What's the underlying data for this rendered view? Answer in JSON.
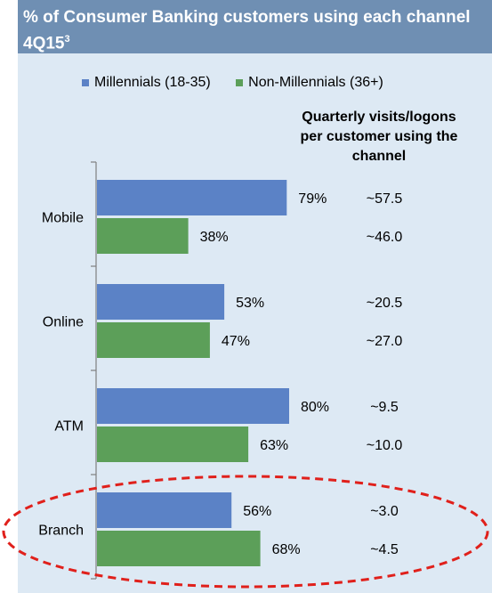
{
  "header": {
    "title": "% of Consumer Banking customers using each channel 4Q15",
    "superscript": "3"
  },
  "colors": {
    "millennials": "#5b82c6",
    "non_millennials": "#5c9f59",
    "highlight": "#e0201b",
    "header": "#6f8fb3",
    "panel": "#dde9f4"
  },
  "note": "Quarterly visits/logons per customer using the channel",
  "chart_data": {
    "type": "bar",
    "orientation": "horizontal",
    "categories": [
      "Mobile",
      "Online",
      "ATM",
      "Branch"
    ],
    "series": [
      {
        "name": "Millennials (18-35)",
        "values": [
          79,
          53,
          80,
          56
        ],
        "labels": [
          "79%",
          "53%",
          "80%",
          "56%"
        ],
        "visits": [
          "~57.5",
          "~20.5",
          "~9.5",
          "~3.0"
        ]
      },
      {
        "name": "Non-Millennials (36+)",
        "values": [
          38,
          47,
          63,
          68
        ],
        "labels": [
          "38%",
          "47%",
          "63%",
          "68%"
        ],
        "visits": [
          "~46.0",
          "~27.0",
          "~10.0",
          "~4.5"
        ]
      }
    ],
    "highlighted_category": "Branch"
  }
}
